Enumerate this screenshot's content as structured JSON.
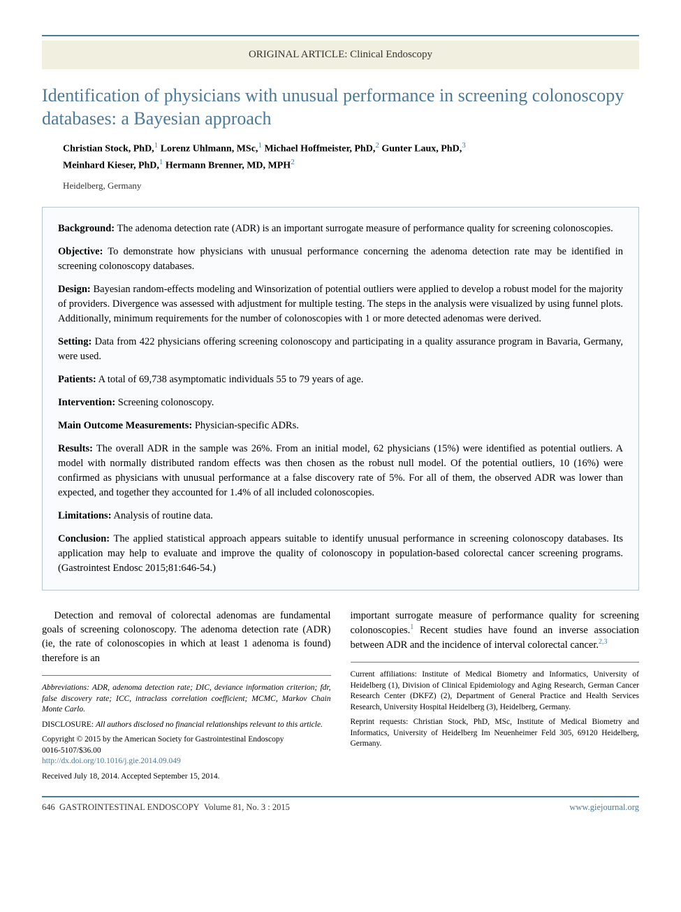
{
  "category": "ORIGINAL ARTICLE: Clinical Endoscopy",
  "title": "Identification of physicians with unusual performance in screening colonoscopy databases: a Bayesian approach",
  "authors_html": "<b>Christian Stock, PhD,</b><sup>1</sup> <b>Lorenz Uhlmann, MSc,</b><sup>1</sup> <b>Michael Hoffmeister, PhD,</b><sup>2</sup> <b>Gunter Laux, PhD,</b><sup>3</sup><br><b>Meinhard Kieser, PhD,</b><sup>1</sup> <b>Hermann Brenner, MD, MPH</b><sup>2</sup>",
  "location": "Heidelberg, Germany",
  "abstract": {
    "background": {
      "label": "Background:",
      "text": " The adenoma detection rate (ADR) is an important surrogate measure of performance quality for screening colonoscopies."
    },
    "objective": {
      "label": "Objective:",
      "text": " To demonstrate how physicians with unusual performance concerning the adenoma detection rate may be identified in screening colonoscopy databases."
    },
    "design": {
      "label": "Design:",
      "text": " Bayesian random-effects modeling and Winsorization of potential outliers were applied to develop a robust model for the majority of providers. Divergence was assessed with adjustment for multiple testing. The steps in the analysis were visualized by using funnel plots. Additionally, minimum requirements for the number of colonoscopies with 1 or more detected adenomas were derived."
    },
    "setting": {
      "label": "Setting:",
      "text": " Data from 422 physicians offering screening colonoscopy and participating in a quality assurance program in Bavaria, Germany, were used."
    },
    "patients": {
      "label": "Patients:",
      "text": " A total of 69,738 asymptomatic individuals 55 to 79 years of age."
    },
    "intervention": {
      "label": "Intervention:",
      "text": " Screening colonoscopy."
    },
    "measurements": {
      "label": "Main Outcome Measurements:",
      "text": " Physician-specific ADRs."
    },
    "results": {
      "label": "Results:",
      "text": " The overall ADR in the sample was 26%. From an initial model, 62 physicians (15%) were identified as potential outliers. A model with normally distributed random effects was then chosen as the robust null model. Of the potential outliers, 10 (16%) were confirmed as physicians with unusual performance at a false discovery rate of 5%. For all of them, the observed ADR was lower than expected, and together they accounted for 1.4% of all included colonoscopies."
    },
    "limitations": {
      "label": "Limitations:",
      "text": " Analysis of routine data."
    },
    "conclusion": {
      "label": "Conclusion:",
      "text": " The applied statistical approach appears suitable to identify unusual performance in screening colonoscopy databases. Its application may help to evaluate and improve the quality of colonoscopy in population-based colorectal cancer screening programs. (Gastrointest Endosc 2015;81:646-54.)"
    }
  },
  "body": {
    "left": "Detection and removal of colorectal adenomas are fundamental goals of screening colonoscopy. The adenoma detection rate (ADR) (ie, the rate of colonoscopies in which at least 1 adenoma is found) therefore is an",
    "right_html": "important surrogate measure of performance quality for screening colonoscopies.<sup>1</sup> Recent studies have found an inverse association between ADR and the incidence of interval colorectal cancer.<sup>2,3</sup>"
  },
  "footnotes": {
    "abbrev": "Abbreviations: ADR, adenoma detection rate; DIC, deviance information criterion; fdr, false discovery rate; ICC, intraclass correlation coefficient; MCMC, Markov Chain Monte Carlo.",
    "disclosure_label": "DISCLOSURE: ",
    "disclosure_text": "All authors disclosed no financial relationships relevant to this article.",
    "copyright": "Copyright © 2015 by the American Society for Gastrointestinal Endoscopy",
    "issn": "0016-5107/$36.00",
    "doi": "http://dx.doi.org/10.1016/j.gie.2014.09.049",
    "received": "Received July 18, 2014. Accepted September 15, 2014.",
    "affiliations": "Current affiliations: Institute of Medical Biometry and Informatics, University of Heidelberg (1), Division of Clinical Epidemiology and Aging Research, German Cancer Research Center (DKFZ) (2), Department of General Practice and Health Services Research, University Hospital Heidelberg (3), Heidelberg, Germany.",
    "reprint": "Reprint requests: Christian Stock, PhD, MSc, Institute of Medical Biometry and Informatics, University of Heidelberg Im Neuenheimer Feld 305, 69120 Heidelberg, Germany."
  },
  "footer": {
    "left_html": "646&nbsp;&nbsp;GASTROINTESTINAL ENDOSCOPY&nbsp;&nbsp;Volume 81, No. 3 : 2015",
    "right": "www.giejournal.org"
  },
  "colors": {
    "accent": "#4a7a9a",
    "category_bg": "#f0efe0",
    "abstract_bg": "#fafbfc",
    "abstract_border": "#b8c8d0"
  }
}
